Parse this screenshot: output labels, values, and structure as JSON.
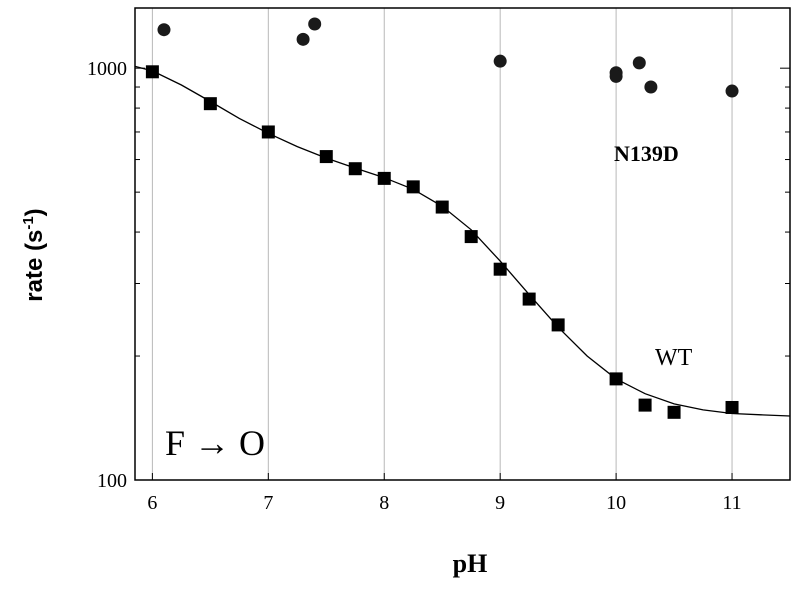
{
  "chart_data": {
    "type": "scatter",
    "xlabel": "pH",
    "ylabel_main": "rate (s",
    "ylabel_sup": "-1",
    "ylabel_close": ")",
    "xlim": [
      5.85,
      11.5
    ],
    "ylim": [
      100,
      1400
    ],
    "yscale": "log",
    "grid": "vertical",
    "x_ticks": [
      "6",
      "7",
      "8",
      "9",
      "10",
      "11"
    ],
    "y_ticks": [
      "1000",
      "100"
    ],
    "series": [
      {
        "name": "WT",
        "marker": "square",
        "points": [
          [
            6.0,
            980
          ],
          [
            6.5,
            820
          ],
          [
            7.0,
            700
          ],
          [
            7.5,
            610
          ],
          [
            7.75,
            570
          ],
          [
            8.0,
            540
          ],
          [
            8.25,
            515
          ],
          [
            8.5,
            460
          ],
          [
            8.75,
            390
          ],
          [
            9.0,
            325
          ],
          [
            9.25,
            275
          ],
          [
            9.5,
            238
          ],
          [
            10.0,
            176
          ],
          [
            10.25,
            152
          ],
          [
            10.5,
            146
          ],
          [
            11.0,
            150
          ]
        ],
        "fit": [
          [
            5.85,
            1010
          ],
          [
            6.0,
            985
          ],
          [
            6.25,
            910
          ],
          [
            6.5,
            830
          ],
          [
            6.75,
            755
          ],
          [
            7.0,
            695
          ],
          [
            7.25,
            645
          ],
          [
            7.5,
            605
          ],
          [
            7.75,
            572
          ],
          [
            8.0,
            542
          ],
          [
            8.25,
            508
          ],
          [
            8.5,
            462
          ],
          [
            8.75,
            405
          ],
          [
            9.0,
            340
          ],
          [
            9.25,
            282
          ],
          [
            9.5,
            235
          ],
          [
            9.75,
            200
          ],
          [
            10.0,
            176
          ],
          [
            10.25,
            162
          ],
          [
            10.5,
            153
          ],
          [
            10.75,
            148
          ],
          [
            11.0,
            145
          ],
          [
            11.25,
            144
          ],
          [
            11.5,
            143
          ]
        ]
      },
      {
        "name": "N139D",
        "marker": "circle",
        "points": [
          [
            6.1,
            1240
          ],
          [
            7.3,
            1175
          ],
          [
            7.4,
            1280
          ],
          [
            9.0,
            1040
          ],
          [
            10.0,
            975
          ],
          [
            10.0,
            955
          ],
          [
            10.2,
            1030
          ],
          [
            10.3,
            900
          ],
          [
            11.0,
            880
          ]
        ]
      }
    ],
    "annotations": {
      "n139d": "N139D",
      "wt": "WT",
      "transition": "F → O"
    }
  }
}
